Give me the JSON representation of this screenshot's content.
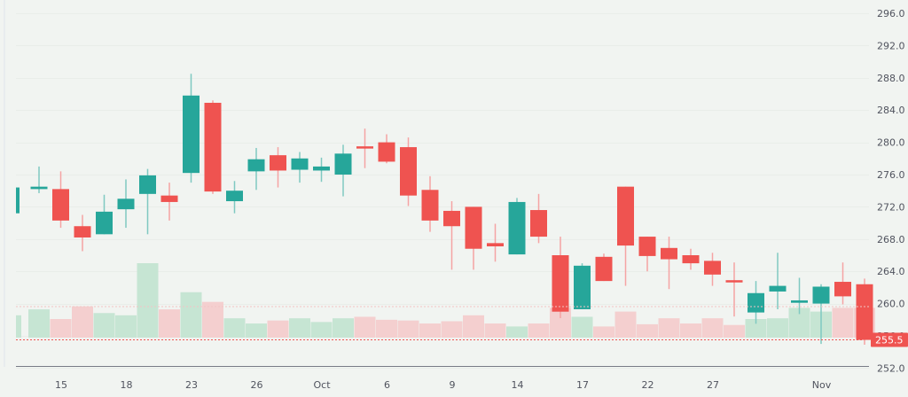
{
  "chart_data": {
    "type": "candlestick",
    "title": "",
    "xlabel": "",
    "ylabel": "",
    "ylim": [
      250.5,
      297.6
    ],
    "y_ticks": [
      "296.0",
      "292.0",
      "288.0",
      "284.0",
      "280.0",
      "276.0",
      "272.0",
      "268.0",
      "264.0",
      "260.0",
      "256.0",
      "252.0"
    ],
    "x_ticks": [
      {
        "label": "15",
        "index": 2
      },
      {
        "label": "18",
        "index": 5
      },
      {
        "label": "23",
        "index": 8
      },
      {
        "label": "26",
        "index": 11
      },
      {
        "label": "Oct",
        "index": 14
      },
      {
        "label": "6",
        "index": 17
      },
      {
        "label": "9",
        "index": 20
      },
      {
        "label": "14",
        "index": 23
      },
      {
        "label": "17",
        "index": 26
      },
      {
        "label": "22",
        "index": 29
      },
      {
        "label": "27",
        "index": 32
      },
      {
        "label": "Nov",
        "index": 37
      }
    ],
    "last_price": {
      "label": "255.5",
      "value": 255.5
    },
    "colors": {
      "up": "#26a69a",
      "down": "#ef5350",
      "up_volume": "#c6e5d3",
      "down_volume": "#f4cfcf",
      "background": "#f1f4f1"
    },
    "grid": true,
    "candles": [
      {
        "o": 271.2,
        "h": 274.4,
        "l": 271.2,
        "c": 274.4,
        "v": 0.3
      },
      {
        "o": 274.2,
        "h": 277.0,
        "l": 273.7,
        "c": 274.5,
        "v": 0.38
      },
      {
        "o": 274.2,
        "h": 276.4,
        "l": 269.4,
        "c": 270.3,
        "v": 0.25
      },
      {
        "o": 269.6,
        "h": 271.0,
        "l": 266.5,
        "c": 268.2,
        "v": 0.42
      },
      {
        "o": 268.6,
        "h": 273.5,
        "l": 268.6,
        "c": 271.4,
        "v": 0.33
      },
      {
        "o": 271.7,
        "h": 275.4,
        "l": 269.4,
        "c": 273.0,
        "v": 0.3
      },
      {
        "o": 273.6,
        "h": 276.7,
        "l": 268.6,
        "c": 275.9,
        "v": 1.0
      },
      {
        "o": 273.4,
        "h": 275.0,
        "l": 270.3,
        "c": 272.6,
        "v": 0.38
      },
      {
        "o": 276.2,
        "h": 288.5,
        "l": 275.0,
        "c": 285.8,
        "v": 0.61
      },
      {
        "o": 284.9,
        "h": 285.2,
        "l": 273.6,
        "c": 273.9,
        "v": 0.48
      },
      {
        "o": 272.7,
        "h": 275.2,
        "l": 271.2,
        "c": 274.0,
        "v": 0.26
      },
      {
        "o": 276.4,
        "h": 279.3,
        "l": 274.1,
        "c": 277.9,
        "v": 0.19
      },
      {
        "o": 278.4,
        "h": 279.4,
        "l": 274.4,
        "c": 276.5,
        "v": 0.23
      },
      {
        "o": 276.6,
        "h": 278.8,
        "l": 275.0,
        "c": 278.0,
        "v": 0.26
      },
      {
        "o": 276.5,
        "h": 278.1,
        "l": 275.1,
        "c": 277.0,
        "v": 0.21
      },
      {
        "o": 276.0,
        "h": 279.7,
        "l": 273.3,
        "c": 278.6,
        "v": 0.26
      },
      {
        "o": 279.5,
        "h": 281.7,
        "l": 276.8,
        "c": 279.3,
        "v": 0.28
      },
      {
        "o": 280.0,
        "h": 281.0,
        "l": 277.4,
        "c": 277.6,
        "v": 0.24
      },
      {
        "o": 279.4,
        "h": 280.6,
        "l": 272.1,
        "c": 273.4,
        "v": 0.23
      },
      {
        "o": 274.1,
        "h": 275.8,
        "l": 268.9,
        "c": 270.3,
        "v": 0.19
      },
      {
        "o": 271.5,
        "h": 272.7,
        "l": 264.2,
        "c": 269.6,
        "v": 0.22
      },
      {
        "o": 272.0,
        "h": 272.0,
        "l": 264.2,
        "c": 266.8,
        "v": 0.3
      },
      {
        "o": 267.5,
        "h": 269.9,
        "l": 265.2,
        "c": 267.1,
        "v": 0.19
      },
      {
        "o": 266.1,
        "h": 273.1,
        "l": 266.1,
        "c": 272.6,
        "v": 0.15
      },
      {
        "o": 271.6,
        "h": 273.6,
        "l": 267.5,
        "c": 268.3,
        "v": 0.19
      },
      {
        "o": 266.0,
        "h": 268.3,
        "l": 258.2,
        "c": 259.0,
        "v": 0.4
      },
      {
        "o": 259.3,
        "h": 265.0,
        "l": 259.3,
        "c": 264.7,
        "v": 0.28
      },
      {
        "o": 265.8,
        "h": 266.2,
        "l": 262.8,
        "c": 262.8,
        "v": 0.15
      },
      {
        "o": 274.5,
        "h": 274.5,
        "l": 262.2,
        "c": 267.2,
        "v": 0.35
      },
      {
        "o": 268.3,
        "h": 268.3,
        "l": 264.0,
        "c": 265.9,
        "v": 0.18
      },
      {
        "o": 266.9,
        "h": 268.3,
        "l": 261.8,
        "c": 265.5,
        "v": 0.26
      },
      {
        "o": 266.0,
        "h": 266.8,
        "l": 264.2,
        "c": 265.0,
        "v": 0.19
      },
      {
        "o": 265.3,
        "h": 266.3,
        "l": 262.2,
        "c": 263.6,
        "v": 0.26
      },
      {
        "o": 262.9,
        "h": 265.1,
        "l": 258.4,
        "c": 262.7,
        "v": 0.17
      },
      {
        "o": 258.9,
        "h": 262.8,
        "l": 257.5,
        "c": 261.3,
        "v": 0.25
      },
      {
        "o": 261.5,
        "h": 266.3,
        "l": 259.3,
        "c": 262.2,
        "v": 0.26
      },
      {
        "o": 260.1,
        "h": 263.2,
        "l": 258.7,
        "c": 260.4,
        "v": 0.4
      },
      {
        "o": 260.0,
        "h": 262.4,
        "l": 255.0,
        "c": 262.1,
        "v": 0.35
      },
      {
        "o": 262.7,
        "h": 265.1,
        "l": 259.9,
        "c": 260.9,
        "v": 0.4
      },
      {
        "o": 262.4,
        "h": 263.1,
        "l": 254.9,
        "c": 255.5,
        "v": 0.4
      }
    ]
  }
}
